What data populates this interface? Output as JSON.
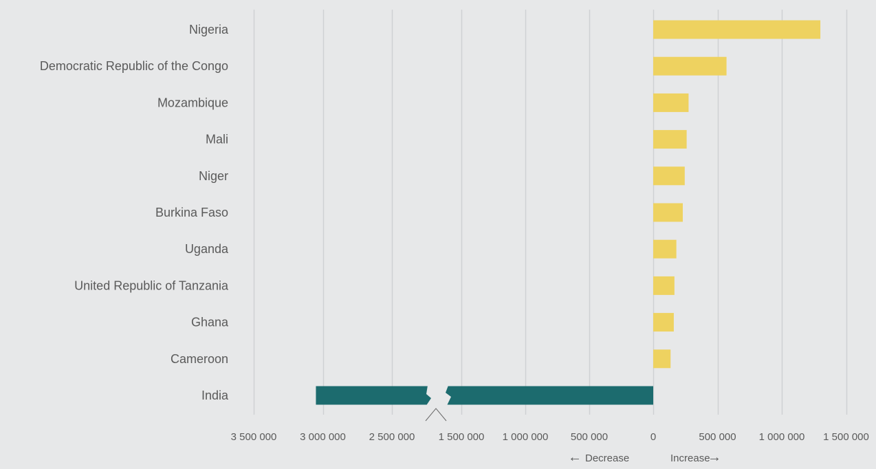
{
  "chart_data": {
    "type": "bar",
    "orientation": "horizontal",
    "categories": [
      "Nigeria",
      "Democratic Republic of the Congo",
      "Mozambique",
      "Mali",
      "Niger",
      "Burkina Faso",
      "Uganda",
      "United Republic of Tanzania",
      "Ghana",
      "Cameroon",
      "India"
    ],
    "values": [
      1300000,
      570000,
      275000,
      260000,
      245000,
      230000,
      180000,
      165000,
      160000,
      135000,
      -3050000
    ],
    "colors": {
      "increase": "#eed260",
      "decrease": "#1c6b6e",
      "grid": "#cfd1d3",
      "text": "#5a5a5a",
      "background": "#e7e8e9"
    },
    "xaxis": {
      "ticks": [
        "3 500 000",
        "3 000 000",
        "2 500 000",
        "1 500 000",
        "1 000 000",
        "500 000",
        "0",
        "500 000",
        "1 000 000",
        "1 500 000"
      ],
      "broken": true,
      "break_between": [
        -2500000,
        -1500000
      ]
    },
    "grid": true,
    "legend": {
      "decrease_label": "Decrease",
      "decrease_arrow": "←",
      "increase_label": "Increase",
      "increase_arrow": "→",
      "position": "bottom-right"
    }
  }
}
